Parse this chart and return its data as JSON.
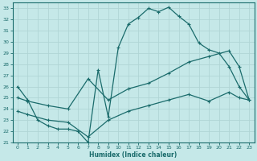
{
  "bg_color": "#c5e8e8",
  "grid_color": "#b0d5d5",
  "line_color": "#1a6b6b",
  "xlabel": "Humidex (Indice chaleur)",
  "xlim": [
    -0.5,
    23.5
  ],
  "ylim": [
    21,
    33.5
  ],
  "yticks": [
    21,
    22,
    23,
    24,
    25,
    26,
    27,
    28,
    29,
    30,
    31,
    32,
    33
  ],
  "xticks": [
    0,
    1,
    2,
    3,
    4,
    5,
    6,
    7,
    8,
    9,
    10,
    11,
    12,
    13,
    14,
    15,
    16,
    17,
    18,
    19,
    20,
    21,
    22,
    23
  ],
  "line_upper_x": [
    0,
    1,
    2,
    3,
    4,
    5,
    6,
    7,
    8,
    9,
    10,
    11,
    12,
    13,
    14,
    15,
    16,
    17,
    18,
    19,
    20,
    21,
    22,
    23
  ],
  "line_upper_y": [
    26.0,
    24.8,
    23.0,
    22.5,
    22.2,
    22.2,
    22.0,
    21.0,
    27.5,
    23.3,
    29.5,
    31.6,
    32.2,
    33.0,
    32.7,
    33.1,
    32.3,
    31.6,
    29.9,
    29.3,
    29.0,
    27.8,
    26.0,
    24.8
  ],
  "line_mid_x": [
    0,
    1,
    3,
    5,
    7,
    9,
    11,
    13,
    15,
    17,
    19,
    21,
    22,
    23
  ],
  "line_mid_y": [
    25.0,
    24.7,
    24.3,
    24.0,
    26.7,
    24.8,
    25.8,
    26.3,
    27.2,
    28.2,
    28.7,
    29.2,
    27.8,
    24.8
  ],
  "line_low_x": [
    0,
    1,
    3,
    5,
    7,
    9,
    11,
    13,
    15,
    17,
    19,
    21,
    22,
    23
  ],
  "line_low_y": [
    23.8,
    23.5,
    23.0,
    22.8,
    21.5,
    23.0,
    23.8,
    24.3,
    24.8,
    25.3,
    24.7,
    25.5,
    25.0,
    24.8
  ]
}
